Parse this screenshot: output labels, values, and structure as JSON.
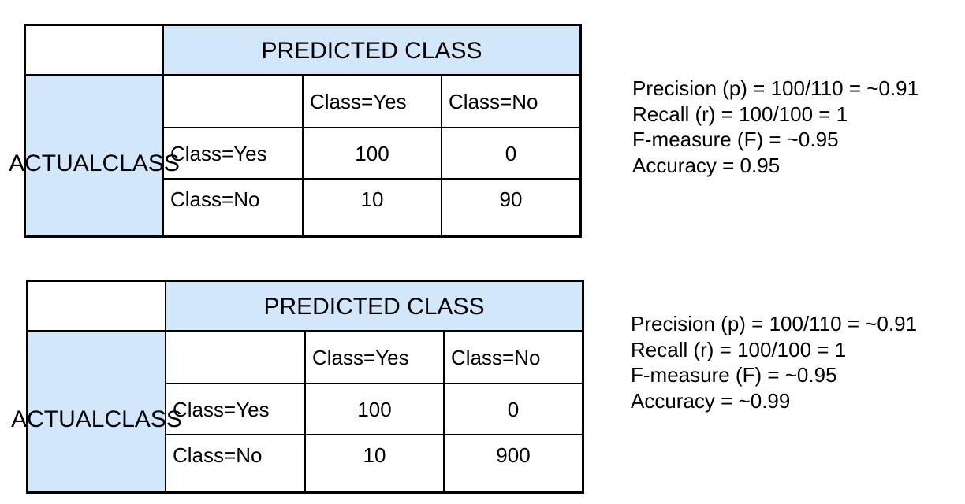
{
  "matrices": [
    {
      "predicted_header": "PREDICTED CLASS",
      "actual_header_line1": "ACTUAL",
      "actual_header_line2": "CLASS",
      "col_labels": [
        "Class=Yes",
        "Class=No"
      ],
      "row_labels": [
        "Class=Yes",
        "Class=No"
      ],
      "values": [
        [
          "100",
          "0"
        ],
        [
          "10",
          "90"
        ]
      ],
      "metrics": [
        "Precision (p) = 100/110 = ~0.91",
        "Recall (r) = 100/100 = 1",
        "F-measure (F) = ~0.95",
        "Accuracy = 0.95"
      ]
    },
    {
      "predicted_header": "PREDICTED CLASS",
      "actual_header_line1": "ACTUAL",
      "actual_header_line2": "CLASS",
      "col_labels": [
        "Class=Yes",
        "Class=No"
      ],
      "row_labels": [
        "Class=Yes",
        "Class=No"
      ],
      "values": [
        [
          "100",
          "0"
        ],
        [
          "10",
          "900"
        ]
      ],
      "metrics": [
        "Precision (p) = 100/110 = ~0.91",
        "Recall (r) = 100/100 = 1",
        "F-measure (F) = ~0.95",
        "Accuracy = ~0.99"
      ]
    }
  ],
  "colors": {
    "header_fill": "#d2e8fa",
    "border": "#000000"
  }
}
